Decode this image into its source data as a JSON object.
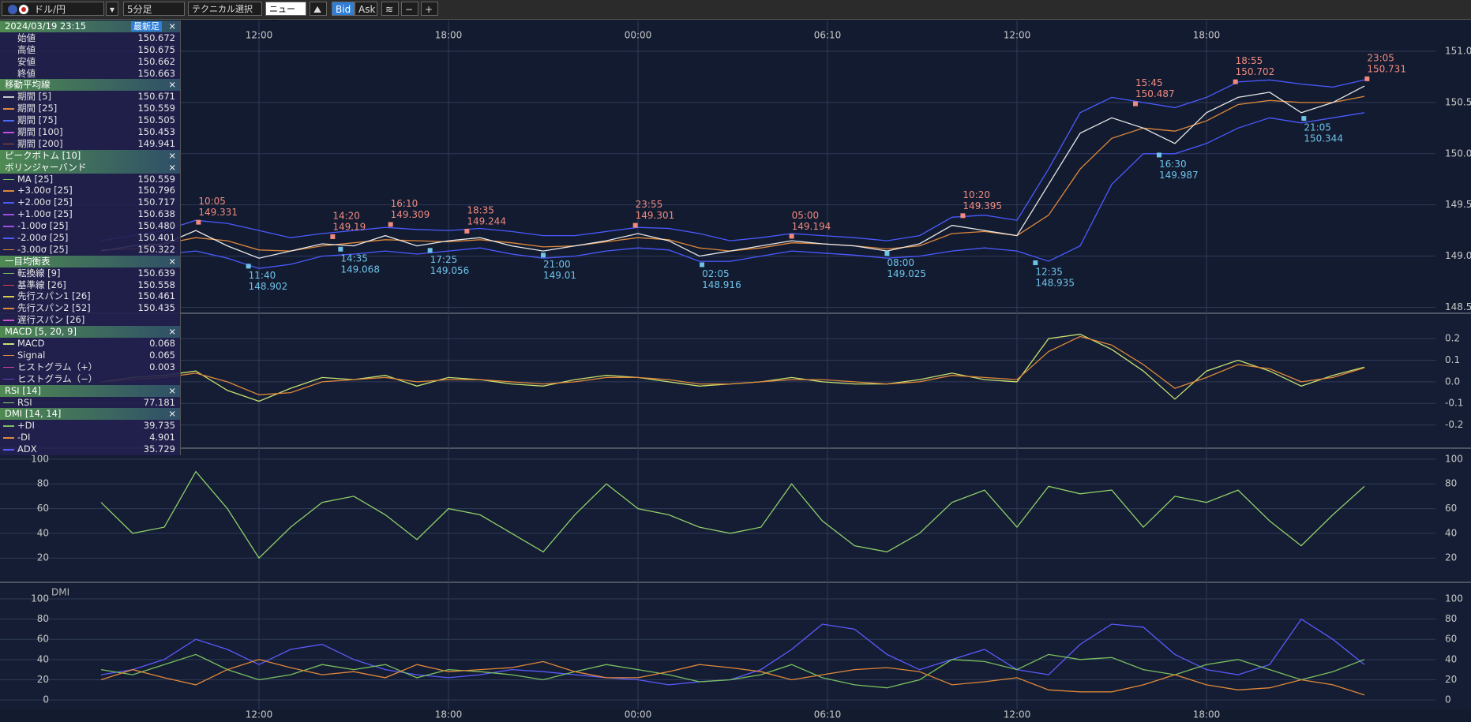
{
  "toolbar": {
    "symbol": "ドル/円",
    "timeframe": "5分足",
    "technical": "テクニカル選択",
    "news": "ニュース",
    "bid": "Bid",
    "ask": "Ask"
  },
  "info_panel": {
    "datetime": "2024/03/19 23:15",
    "latest": "最新足",
    "close": "×",
    "ohlc": [
      {
        "label": "始値",
        "value": "150.672"
      },
      {
        "label": "高値",
        "value": "150.675"
      },
      {
        "label": "安値",
        "value": "150.662"
      },
      {
        "label": "終値",
        "value": "150.663"
      }
    ],
    "sections": [
      {
        "title": "移動平均線",
        "rows": [
          {
            "label": "期間 [5]",
            "value": "150.671",
            "color": "#c8c8c8"
          },
          {
            "label": "期間 [25]",
            "value": "150.559",
            "color": "#e0883a"
          },
          {
            "label": "期間 [75]",
            "value": "150.505",
            "color": "#4a6cff"
          },
          {
            "label": "期間 [100]",
            "value": "150.453",
            "color": "#c050e0"
          },
          {
            "label": "期間 [200]",
            "value": "149.941",
            "color": "#a0522d"
          }
        ]
      },
      {
        "title": "ピークボトム [10]",
        "rows": []
      },
      {
        "title": "ボリンジャーバンド",
        "rows": [
          {
            "label": "MA [25]",
            "value": "150.559",
            "color": "#7ac060"
          },
          {
            "label": "+3.00σ [25]",
            "value": "150.796",
            "color": "#e0883a"
          },
          {
            "label": "+2.00σ [25]",
            "value": "150.717",
            "color": "#4a5aff"
          },
          {
            "label": "+1.00σ [25]",
            "value": "150.638",
            "color": "#a050e0"
          },
          {
            "label": "-1.00σ [25]",
            "value": "150.480",
            "color": "#a050e0"
          },
          {
            "label": "-2.00σ [25]",
            "value": "150.401",
            "color": "#4a5aff"
          },
          {
            "label": "-3.00σ [25]",
            "value": "150.322",
            "color": "#e0883a"
          }
        ]
      },
      {
        "title": "一目均衡表",
        "rows": [
          {
            "label": "転換線 [9]",
            "value": "150.639",
            "color": "#7ac060"
          },
          {
            "label": "基準線 [26]",
            "value": "150.558",
            "color": "#e04040"
          },
          {
            "label": "先行スパン1 [26]",
            "value": "150.461",
            "color": "#d8c850"
          },
          {
            "label": "先行スパン2 [52]",
            "value": "150.435",
            "color": "#e0883a"
          },
          {
            "label": "遅行スパン [26]",
            "color": "#d050d0"
          }
        ]
      },
      {
        "title": "MACD [5, 20, 9]",
        "rows": [
          {
            "label": "MACD",
            "value": "0.068",
            "color": "#c8e070"
          },
          {
            "label": "Signal",
            "value": "0.065",
            "color": "#e0883a"
          },
          {
            "label": "ヒストグラム（+）",
            "value": "0.003",
            "color": "#d040a0"
          },
          {
            "label": "ヒストグラム（−）",
            "color": "#7040c0"
          }
        ]
      },
      {
        "title": "RSI [14]",
        "rows": [
          {
            "label": "RSI",
            "value": "77.181",
            "color": "#8fcf6a"
          }
        ]
      },
      {
        "title": "DMI [14, 14]",
        "rows": [
          {
            "label": "+DI",
            "value": "39.735",
            "color": "#7ac060"
          },
          {
            "label": "-DI",
            "value": "4.901",
            "color": "#e0883a"
          },
          {
            "label": "ADX",
            "value": "35.729",
            "color": "#5a5aff"
          }
        ]
      }
    ]
  },
  "chart_data": [
    {
      "type": "line",
      "xticks": [
        "12:00",
        "18:00",
        "00:00",
        "06:10",
        "12:00",
        "18:00"
      ],
      "x": [
        "07:00",
        "08:00",
        "09:00",
        "10:00",
        "11:00",
        "12:00",
        "13:00",
        "14:00",
        "15:00",
        "16:00",
        "17:00",
        "18:00",
        "19:00",
        "20:00",
        "21:00",
        "22:00",
        "23:00",
        "00:00",
        "01:00",
        "02:00",
        "03:00",
        "04:00",
        "05:00",
        "06:00",
        "07:00",
        "08:00",
        "09:00",
        "10:00",
        "11:00",
        "12:00",
        "13:00",
        "14:00",
        "15:00",
        "16:00",
        "17:00",
        "18:00",
        "19:00",
        "20:00",
        "21:00",
        "22:00",
        "23:00"
      ],
      "ylim": [
        148.45,
        151.3
      ],
      "yticks": [
        148.5,
        {
          "value": 149,
          "label": "149.0"
        },
        149.5,
        {
          "value": 150,
          "label": "150.0"
        },
        150.5,
        {
          "value": 151,
          "label": "151.0"
        }
      ],
      "series": [
        {
          "color": "#4a5aff",
          "values": [
            149.15,
            149.2,
            149.25,
            149.35,
            149.32,
            149.25,
            149.18,
            149.22,
            149.25,
            149.28,
            149.26,
            149.25,
            149.27,
            149.24,
            149.2,
            149.2,
            149.24,
            149.28,
            149.27,
            149.22,
            149.15,
            149.18,
            149.22,
            149.2,
            149.18,
            149.15,
            149.2,
            149.38,
            149.4,
            149.35,
            149.85,
            150.4,
            150.55,
            150.5,
            150.45,
            150.55,
            150.7,
            150.72,
            150.68,
            150.65,
            150.72
          ]
        },
        {
          "color": "#4a5aff",
          "values": [
            148.98,
            149,
            149.02,
            149.05,
            148.98,
            148.88,
            148.92,
            149,
            149.02,
            149.05,
            149.02,
            149.05,
            149.08,
            149.02,
            148.98,
            149,
            149.05,
            149.08,
            149.06,
            148.95,
            148.95,
            149,
            149.05,
            149.03,
            149.01,
            148.98,
            149,
            149.05,
            149.08,
            149.05,
            148.95,
            149.1,
            149.7,
            150,
            150,
            150.1,
            150.25,
            150.35,
            150.3,
            150.35,
            150.4
          ]
        },
        {
          "color": "#e0883a",
          "values": [
            149.06,
            149.07,
            149.12,
            149.18,
            149.15,
            149.06,
            149.05,
            149.1,
            149.13,
            149.16,
            149.15,
            149.14,
            149.16,
            149.13,
            149.09,
            149.1,
            149.14,
            149.18,
            149.16,
            149.08,
            149.05,
            149.08,
            149.13,
            149.12,
            149.1,
            149.07,
            149.1,
            149.22,
            149.24,
            149.2,
            149.4,
            149.85,
            150.15,
            150.25,
            150.22,
            150.32,
            150.48,
            150.52,
            150.5,
            150.5,
            150.56
          ]
        },
        {
          "color": "#e8e8e8",
          "values": [
            149.05,
            149.1,
            149.12,
            149.25,
            149.1,
            148.98,
            149.05,
            149.12,
            149.1,
            149.2,
            149.1,
            149.15,
            149.18,
            149.1,
            149.05,
            149.1,
            149.15,
            149.22,
            149.15,
            149,
            149.05,
            149.1,
            149.15,
            149.12,
            149.1,
            149.05,
            149.12,
            149.3,
            149.25,
            149.2,
            149.7,
            150.2,
            150.35,
            150.25,
            150.1,
            150.4,
            150.55,
            150.6,
            150.4,
            150.5,
            150.66
          ]
        }
      ],
      "highs": [
        {
          "time": "10:05",
          "price": 149.331
        },
        {
          "time": "14:20",
          "price": 149.19
        },
        {
          "time": "16:10",
          "price": 149.309
        },
        {
          "time": "18:35",
          "price": 149.244
        },
        {
          "time": "23:55",
          "price": 149.301
        },
        {
          "time": "05:00",
          "price": 149.194
        },
        {
          "time": "10:20",
          "price": 149.395
        },
        {
          "time": "15:45",
          "price": 150.487
        },
        {
          "time": "18:55",
          "price": 150.702
        },
        {
          "time": "23:05",
          "price": 150.731
        }
      ],
      "lows": [
        {
          "time": "11:40",
          "price": 148.902
        },
        {
          "time": "14:35",
          "price": 149.068
        },
        {
          "time": "17:25",
          "price": 149.056
        },
        {
          "time": "21:00",
          "price": 149.01
        },
        {
          "time": "02:05",
          "price": 148.916
        },
        {
          "time": "08:00",
          "price": 149.025
        },
        {
          "time": "12:35",
          "price": 148.935
        },
        {
          "time": "16:30",
          "price": 149.987
        },
        {
          "time": "21:05",
          "price": 150.344
        }
      ]
    },
    {
      "type": "line",
      "ylim": [
        -0.3,
        0.31
      ],
      "yticks": [
        -0.2,
        -0.1,
        {
          "value": 0,
          "label": "0.0"
        },
        0.1,
        0.2
      ],
      "series": [
        {
          "color": "#c8e070",
          "values": [
            0,
            0.02,
            0.03,
            0.05,
            -0.04,
            -0.09,
            -0.03,
            0.02,
            0.01,
            0.03,
            -0.02,
            0.02,
            0.01,
            -0.01,
            -0.02,
            0.01,
            0.03,
            0.02,
            0,
            -0.02,
            -0.01,
            0,
            0.02,
            0,
            -0.01,
            -0.01,
            0.01,
            0.04,
            0.01,
            0,
            0.2,
            0.22,
            0.15,
            0.05,
            -0.08,
            0.05,
            0.1,
            0.05,
            -0.02,
            0.03,
            0.068
          ]
        },
        {
          "color": "#e0883a",
          "values": [
            0,
            0.01,
            0.02,
            0.04,
            0,
            -0.06,
            -0.05,
            0,
            0.01,
            0.02,
            0,
            0.01,
            0.01,
            0,
            -0.01,
            0,
            0.02,
            0.02,
            0.01,
            -0.01,
            -0.01,
            0,
            0.01,
            0.01,
            0,
            -0.01,
            0,
            0.03,
            0.02,
            0.01,
            0.14,
            0.21,
            0.17,
            0.08,
            -0.03,
            0.02,
            0.08,
            0.06,
            0,
            0.02,
            0.065
          ]
        }
      ]
    },
    {
      "type": "line",
      "ylim": [
        1,
        107.6
      ],
      "yticks": [
        20,
        40,
        60,
        80,
        100
      ],
      "series": [
        {
          "color": "#8fcf6a",
          "values": [
            65,
            40,
            45,
            90,
            60,
            20,
            45,
            65,
            70,
            55,
            35,
            60,
            55,
            40,
            25,
            55,
            80,
            60,
            55,
            45,
            40,
            45,
            80,
            50,
            30,
            25,
            40,
            65,
            75,
            45,
            78,
            72,
            75,
            45,
            70,
            65,
            75,
            50,
            30,
            55,
            78
          ]
        }
      ]
    },
    {
      "type": "line",
      "title": "DMI",
      "ylim": [
        -9.3,
        114.8
      ],
      "yticks": [
        0,
        20,
        40,
        60,
        80,
        100
      ],
      "series": [
        {
          "color": "#5a5aff",
          "values": [
            25,
            30,
            40,
            60,
            50,
            35,
            50,
            55,
            40,
            30,
            25,
            22,
            25,
            30,
            28,
            25,
            22,
            20,
            15,
            18,
            20,
            30,
            50,
            75,
            70,
            45,
            30,
            40,
            50,
            30,
            25,
            55,
            75,
            72,
            45,
            30,
            25,
            35,
            80,
            60,
            35
          ]
        },
        {
          "color": "#7ac060",
          "values": [
            30,
            25,
            35,
            45,
            30,
            20,
            25,
            35,
            30,
            35,
            22,
            30,
            28,
            25,
            20,
            28,
            35,
            30,
            25,
            18,
            20,
            25,
            35,
            22,
            15,
            12,
            20,
            40,
            38,
            30,
            45,
            40,
            42,
            30,
            25,
            35,
            40,
            30,
            20,
            28,
            40
          ]
        },
        {
          "color": "#e0883a",
          "values": [
            20,
            30,
            22,
            15,
            30,
            40,
            32,
            25,
            28,
            22,
            35,
            28,
            30,
            32,
            38,
            28,
            22,
            22,
            28,
            35,
            32,
            28,
            20,
            25,
            30,
            32,
            28,
            15,
            18,
            22,
            10,
            8,
            8,
            15,
            25,
            15,
            10,
            12,
            20,
            15,
            5
          ]
        }
      ]
    }
  ]
}
